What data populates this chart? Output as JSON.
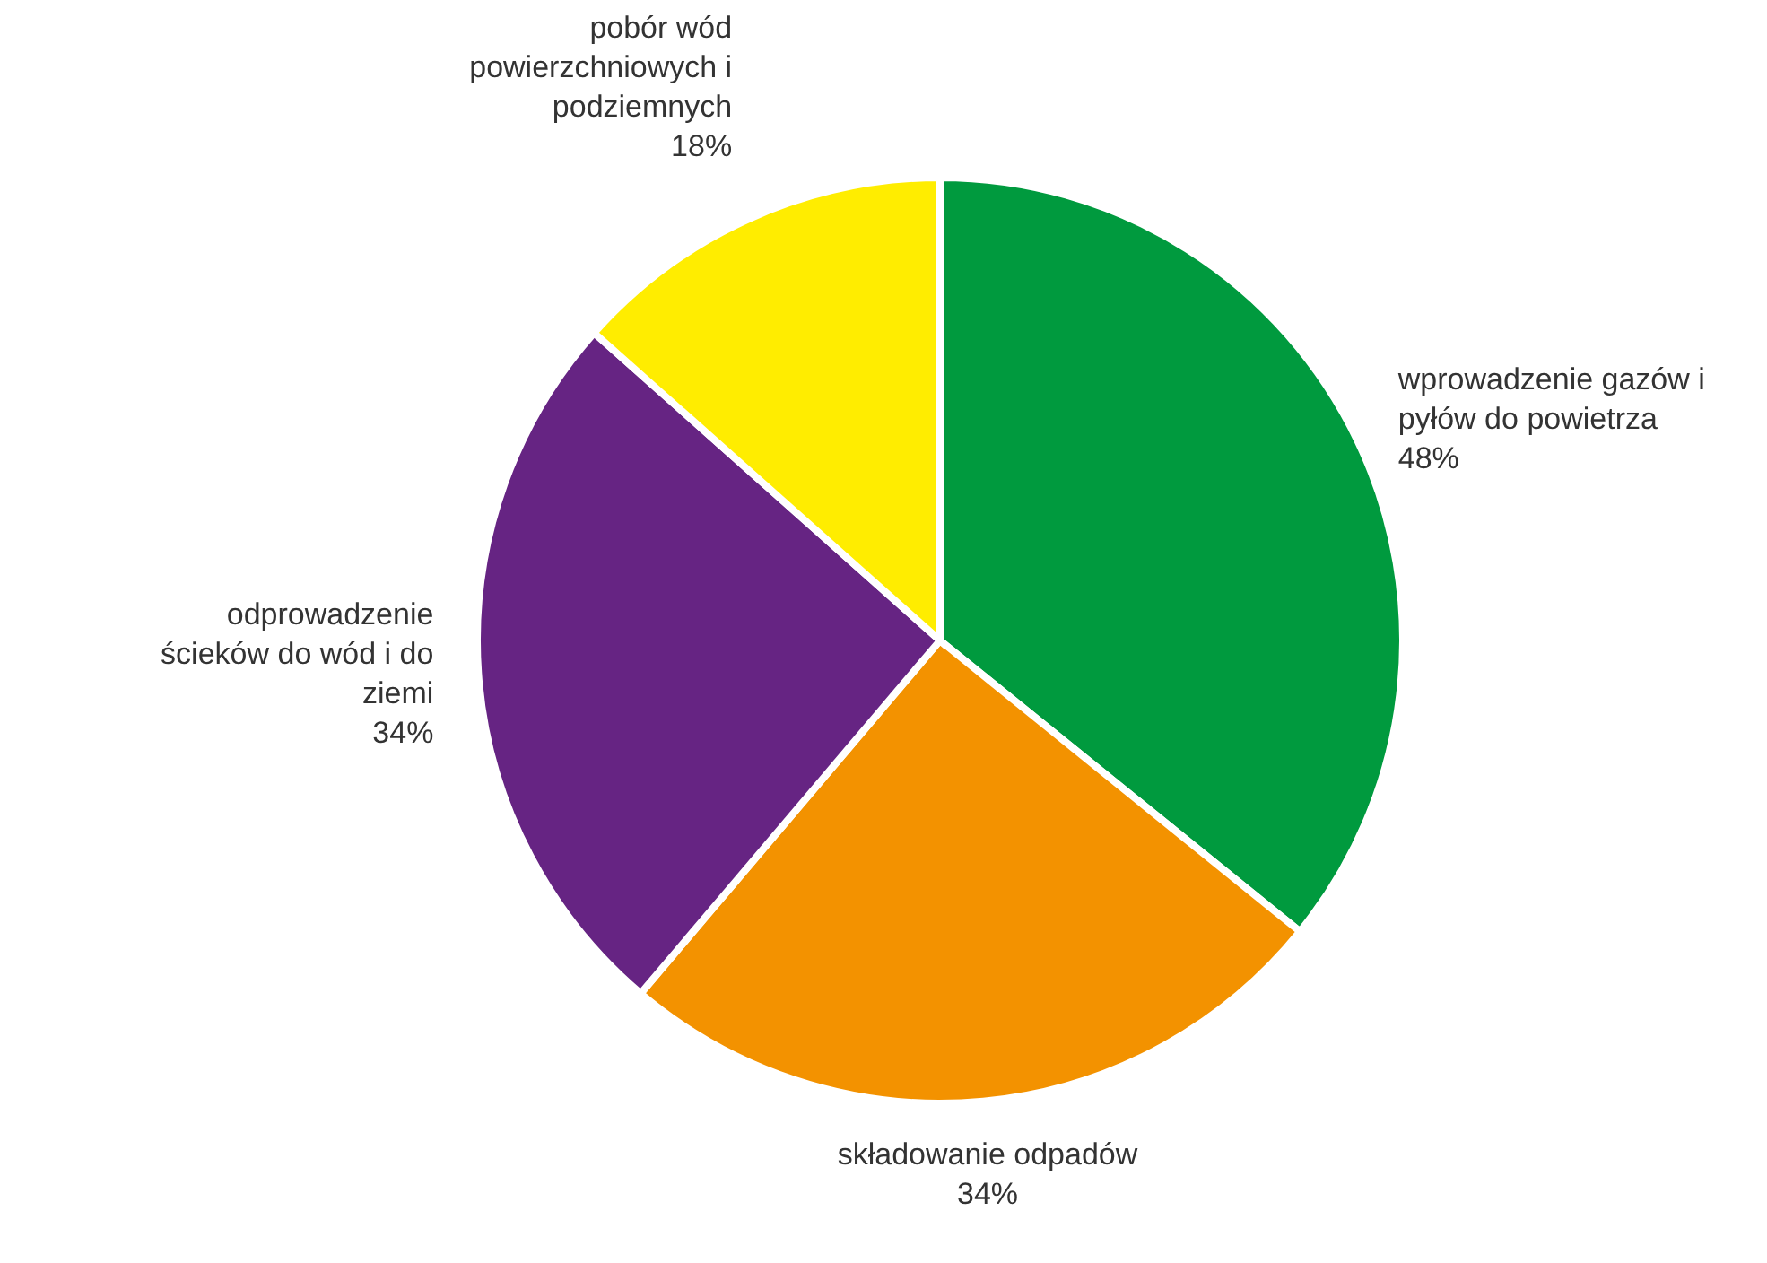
{
  "chart_data": {
    "type": "pie",
    "categories": [
      "wprowadzenie gazów i pyłów do powietrza",
      "składowanie odpadów",
      "odprowadzenie ścieków do wód i do ziemi",
      "pobór wód powierzchniowych i podziemnych"
    ],
    "values": [
      48,
      34,
      34,
      18
    ],
    "value_labels": [
      "48%",
      "34%",
      "34%",
      "18%"
    ],
    "colors": [
      "#009a3e",
      "#f39200",
      "#662483",
      "#ffed00"
    ],
    "legend": false
  }
}
